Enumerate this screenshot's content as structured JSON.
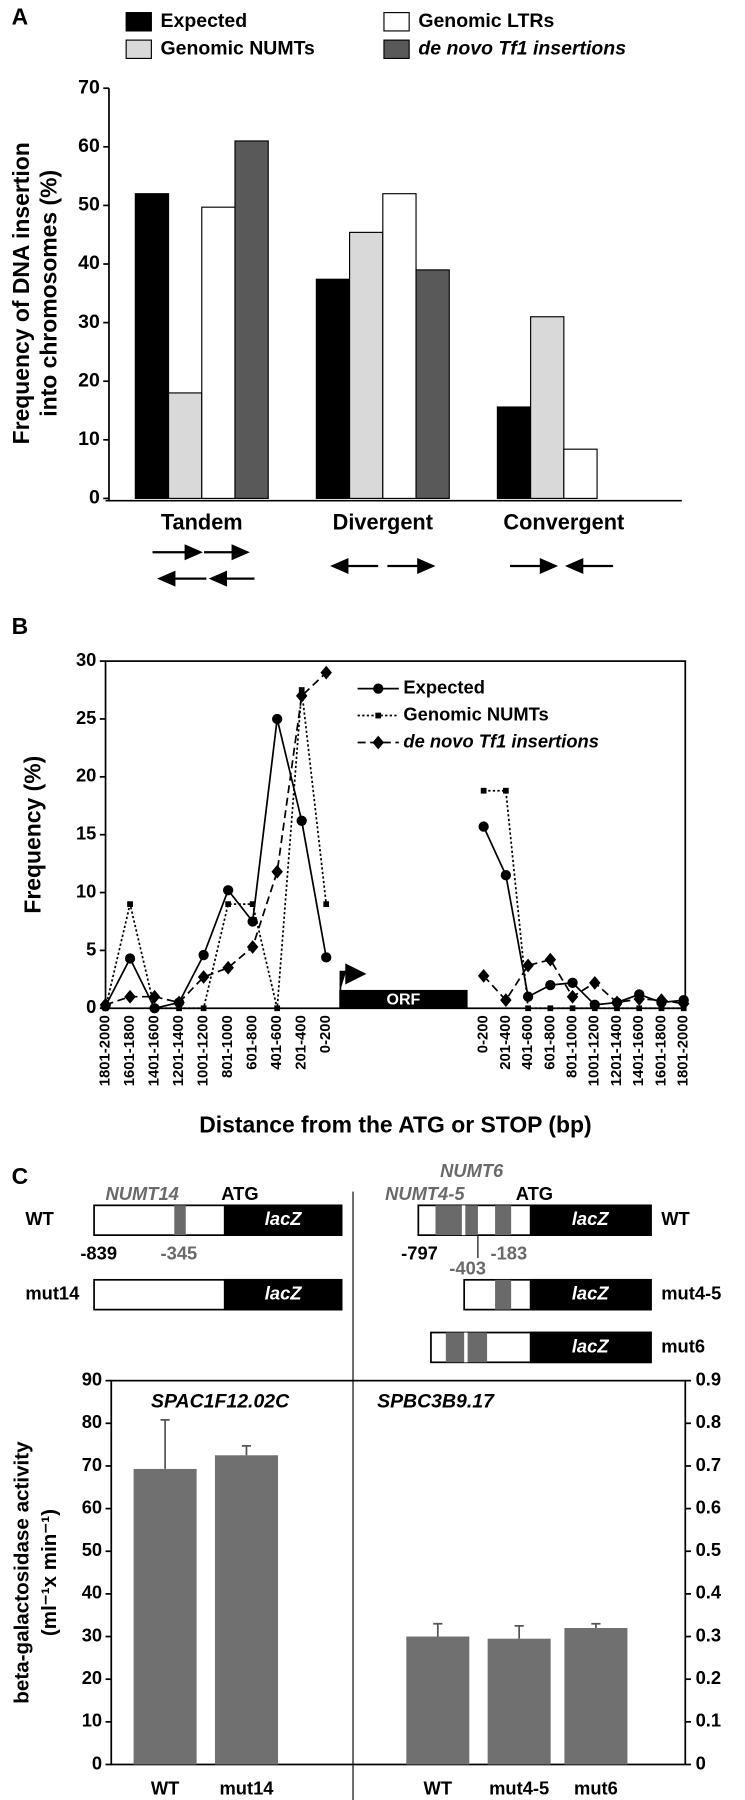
{
  "panel_labels": [
    "A",
    "B",
    "C"
  ],
  "chart_data": [
    {
      "type": "bar",
      "ylabel": [
        "Frequency of DNA insertion",
        "into chromosomes (%)"
      ],
      "categories": [
        "Tandem",
        "Divergent",
        "Convergent"
      ],
      "series": [
        {
          "name": "Expected",
          "color": "#000000",
          "values": [
            52,
            37.4,
            15.6
          ]
        },
        {
          "name": "Genomic NUMTs",
          "color": "#d9d9d9",
          "values": [
            18,
            45.4,
            31
          ]
        },
        {
          "name": "Genomic LTRs",
          "color": "#ffffff",
          "values": [
            49.7,
            52,
            8.4
          ]
        },
        {
          "name": "de novo Tf1 insertions",
          "color": "#595959",
          "values": [
            61,
            39,
            0
          ]
        }
      ],
      "ylim": [
        0,
        70
      ],
      "yticks": [
        0,
        10,
        20,
        30,
        40,
        50,
        60,
        70
      ]
    },
    {
      "type": "line",
      "ylabel": "Frequency (%)",
      "xlabel": "Distance from the ATG or STOP (bp)",
      "orf_label": "ORF",
      "categories": [
        "1801-2000",
        "1601-1800",
        "1401-1600",
        "1201-1400",
        "1001-1200",
        "801-1000",
        "601-800",
        "401-600",
        "201-400",
        "0-200",
        "0-200",
        "201-400",
        "401-600",
        "601-800",
        "801-1000",
        "1001-1200",
        "1201-1400",
        "1401-1600",
        "1601-1800",
        "1801-2000"
      ],
      "series": [
        {
          "name": "Expected",
          "color": "#000000",
          "marker": "circle",
          "dash": "none",
          "values": [
            0.2,
            4.3,
            0,
            0.5,
            4.6,
            10.2,
            7.5,
            25,
            16.2,
            4.4,
            15.7,
            11.5,
            1,
            2,
            2.2,
            0.3,
            0.5,
            1.2,
            0.5,
            0.7
          ]
        },
        {
          "name": "Genomic NUMTs",
          "color": "#000000",
          "marker": "square",
          "dash": "2,2",
          "values": [
            0,
            9,
            0,
            0,
            0,
            9,
            9,
            0,
            27.5,
            9,
            18.8,
            18.8,
            0,
            0,
            0,
            0,
            0,
            0,
            0,
            0
          ]
        },
        {
          "name": "de novo Tf1 insertions",
          "color": "#000000",
          "marker": "diamond",
          "dash": "7,4",
          "values": [
            0.3,
            1,
            1,
            0.5,
            2.7,
            3.5,
            5.3,
            11.8,
            27,
            29,
            2.8,
            0.7,
            3.7,
            4.2,
            1,
            2.2,
            0.5,
            0.8,
            0.7,
            0.4
          ]
        }
      ],
      "ylim": [
        0,
        30
      ],
      "yticks": [
        0,
        5,
        10,
        15,
        20,
        25,
        30
      ]
    },
    {
      "type": "bar",
      "ylabel": [
        "beta-galactosidase activity",
        "(ml⁻¹x min⁻¹)"
      ],
      "annotations": [
        "SPAC1F12.02C",
        "SPBC3B9.17"
      ],
      "categories": [
        "WT",
        "mut14",
        "WT",
        "mut4-5",
        "mut6"
      ],
      "series": [
        {
          "color": "#707070",
          "values": [
            69.3,
            72.5,
            null,
            null,
            null
          ],
          "errors": [
            11.5,
            2.2,
            null,
            null,
            null
          ]
        },
        {
          "color": "#707070",
          "axis": "y2",
          "values": [
            null,
            null,
            0.3,
            0.295,
            0.32
          ],
          "errors": [
            null,
            null,
            0.03,
            0.03,
            0.01
          ]
        }
      ],
      "ylim": [
        0,
        90
      ],
      "yticks": [
        0,
        10,
        20,
        30,
        40,
        50,
        60,
        70,
        80,
        90
      ],
      "y2lim": [
        0,
        0.9
      ],
      "y2ticks": [
        0,
        0.1,
        0.2,
        0.3,
        0.4,
        0.5,
        0.6,
        0.7,
        0.8,
        0.9
      ]
    }
  ],
  "constructs": {
    "left": {
      "name": "WT",
      "numt": "NUMT14",
      "atg": "ATG",
      "reporter": "lacZ",
      "coords": [
        -839,
        -345
      ],
      "mutant": "mut14"
    },
    "right": {
      "name": "WT",
      "numts": [
        "NUMT6",
        "NUMT4-5"
      ],
      "atg": "ATG",
      "reporter": "lacZ",
      "coords": [
        -797,
        -403,
        -183
      ],
      "mutants": [
        "mut4-5",
        "mut6"
      ]
    }
  }
}
